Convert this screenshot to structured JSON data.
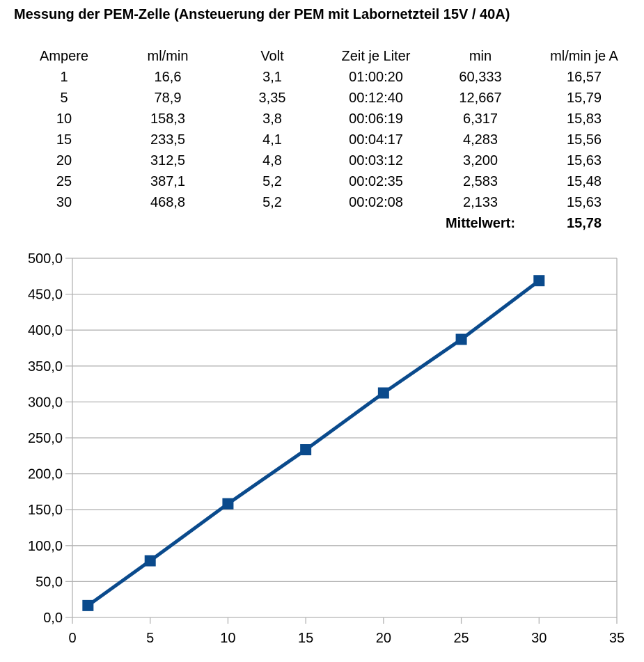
{
  "title": "Messung der PEM-Zelle (Ansteuerung der PEM mit Labornetzteil 15V / 40A)",
  "table": {
    "headers": [
      "Ampere",
      "ml/min",
      "Volt",
      "Zeit je Liter",
      "min",
      "ml/min je A"
    ],
    "rows": [
      [
        "1",
        "16,6",
        "3,1",
        "01:00:20",
        "60,333",
        "16,57"
      ],
      [
        "5",
        "78,9",
        "3,35",
        "00:12:40",
        "12,667",
        "15,79"
      ],
      [
        "10",
        "158,3",
        "3,8",
        "00:06:19",
        "6,317",
        "15,83"
      ],
      [
        "15",
        "233,5",
        "4,1",
        "00:04:17",
        "4,283",
        "15,56"
      ],
      [
        "20",
        "312,5",
        "4,8",
        "00:03:12",
        "3,200",
        "15,63"
      ],
      [
        "25",
        "387,1",
        "5,2",
        "00:02:35",
        "2,583",
        "15,48"
      ],
      [
        "30",
        "468,8",
        "5,2",
        "00:02:08",
        "2,133",
        "15,63"
      ]
    ],
    "summary": {
      "label": "Mittelwert:",
      "value": "15,78"
    }
  },
  "chart_data": {
    "type": "line",
    "title": "",
    "xlabel": "",
    "ylabel": "",
    "x": [
      1,
      5,
      10,
      15,
      20,
      25,
      30
    ],
    "series": [
      {
        "name": "ml/min",
        "values": [
          16.6,
          78.9,
          158.3,
          233.5,
          312.5,
          387.1,
          468.8
        ],
        "color": "#0a4a8c",
        "marker": "square"
      }
    ],
    "xlim": [
      0,
      35
    ],
    "ylim": [
      0,
      500
    ],
    "x_ticks": [
      "0",
      "5",
      "10",
      "15",
      "20",
      "25",
      "30",
      "35"
    ],
    "y_ticks": [
      "0,0",
      "50,0",
      "100,0",
      "150,0",
      "200,0",
      "250,0",
      "300,0",
      "350,0",
      "400,0",
      "450,0",
      "500,0"
    ],
    "grid": {
      "horizontal": true,
      "vertical": false
    },
    "legend": "none"
  }
}
